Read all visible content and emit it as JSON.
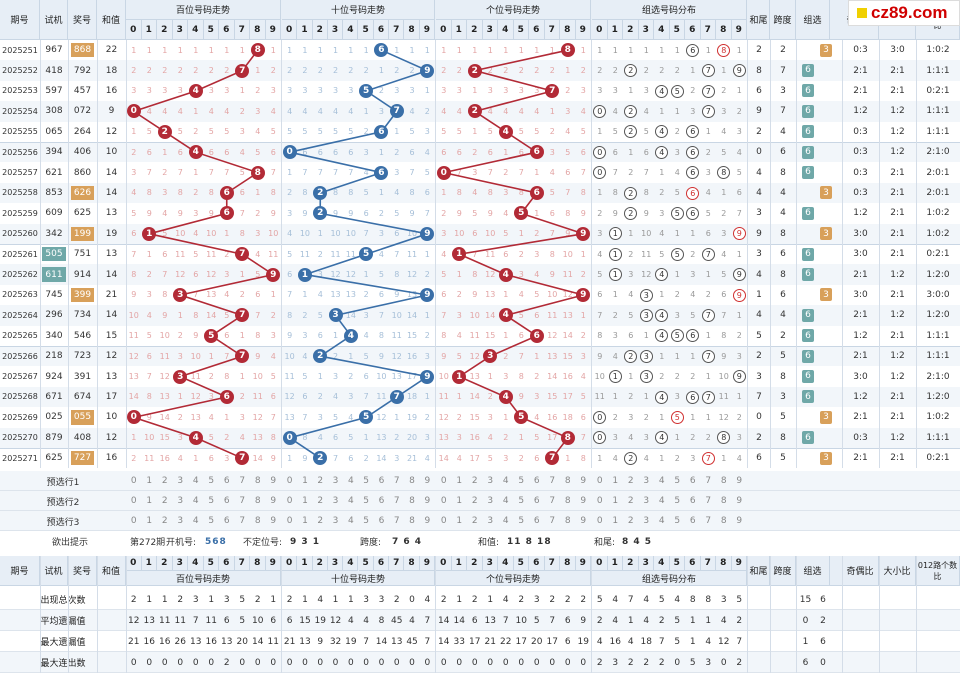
{
  "logo_text": "cz89.com",
  "headers": {
    "period": "期号",
    "trial": "试机",
    "prize": "奖号",
    "sum": "和值",
    "hundreds": "百位号码走势",
    "tens": "十位号码走势",
    "units": "个位号码走势",
    "group": "组选号码分布",
    "tail": "和尾",
    "span": "跨度",
    "zuxuan": "组选",
    "odd_even": "奇偶比",
    "big_small": "大小比",
    "mod012": "012路个数比",
    "digits": [
      "0",
      "1",
      "2",
      "3",
      "4",
      "5",
      "6",
      "7",
      "8",
      "9"
    ]
  },
  "rows": [
    {
      "period": "2025251",
      "trial": "967",
      "prize": "868",
      "prize_hl": "o",
      "sum": "22",
      "h": 8,
      "t": 6,
      "u": 8,
      "grp": [
        6,
        8
      ],
      "grp_red": [
        8
      ],
      "tail": "2",
      "span": "2",
      "zx": "3",
      "zx_c": "o",
      "oe": "0:3",
      "bs": "3:0",
      "m": "1:0:2"
    },
    {
      "period": "2025252",
      "trial": "418",
      "prize": "792",
      "prize_hl": "",
      "sum": "18",
      "h": 7,
      "t": 9,
      "u": 2,
      "grp": [
        2,
        7,
        9
      ],
      "grp_red": [],
      "tail": "8",
      "span": "7",
      "zx": "6",
      "zx_c": "t",
      "oe": "2:1",
      "bs": "2:1",
      "m": "1:1:1"
    },
    {
      "period": "2025253",
      "trial": "597",
      "prize": "457",
      "prize_hl": "",
      "sum": "16",
      "h": 4,
      "t": 5,
      "u": 7,
      "grp": [
        4,
        5,
        7
      ],
      "grp_red": [],
      "tail": "6",
      "span": "3",
      "zx": "6",
      "zx_c": "t",
      "oe": "2:1",
      "bs": "2:1",
      "m": "0:2:1"
    },
    {
      "period": "2025254",
      "trial": "308",
      "prize": "072",
      "prize_hl": "",
      "sum": "9",
      "h": 0,
      "t": 7,
      "u": 2,
      "grp": [
        0,
        2,
        7
      ],
      "grp_red": [],
      "tail": "9",
      "span": "7",
      "zx": "6",
      "zx_c": "t",
      "oe": "1:2",
      "bs": "1:2",
      "m": "1:1:1"
    },
    {
      "period": "2025255",
      "trial": "065",
      "prize": "264",
      "prize_hl": "",
      "sum": "12",
      "h": 2,
      "t": 6,
      "u": 4,
      "grp": [
        2,
        4,
        6
      ],
      "grp_red": [],
      "tail": "2",
      "span": "4",
      "zx": "6",
      "zx_c": "t",
      "oe": "0:3",
      "bs": "1:2",
      "m": "1:1:1"
    },
    {
      "period": "2025256",
      "trial": "394",
      "prize": "406",
      "prize_hl": "",
      "sum": "10",
      "h": 4,
      "t": 0,
      "u": 6,
      "grp": [
        0,
        4,
        6
      ],
      "grp_red": [],
      "tail": "0",
      "span": "6",
      "zx": "6",
      "zx_c": "t",
      "oe": "0:3",
      "bs": "1:2",
      "m": "2:1:0"
    },
    {
      "period": "2025257",
      "trial": "621",
      "prize": "860",
      "prize_hl": "",
      "sum": "14",
      "h": 8,
      "t": 6,
      "u": 0,
      "grp": [
        0,
        6,
        8
      ],
      "grp_red": [],
      "tail": "4",
      "span": "8",
      "zx": "6",
      "zx_c": "t",
      "oe": "0:3",
      "bs": "2:1",
      "m": "2:0:1"
    },
    {
      "period": "2025258",
      "trial": "853",
      "prize": "626",
      "prize_hl": "o",
      "sum": "14",
      "h": 6,
      "t": 2,
      "u": 6,
      "grp": [
        2,
        6
      ],
      "grp_red": [
        6
      ],
      "tail": "4",
      "span": "4",
      "zx": "3",
      "zx_c": "o",
      "oe": "0:3",
      "bs": "2:1",
      "m": "2:0:1"
    },
    {
      "period": "2025259",
      "trial": "609",
      "prize": "625",
      "prize_hl": "",
      "sum": "13",
      "h": 6,
      "t": 2,
      "u": 5,
      "grp": [
        2,
        5,
        6
      ],
      "grp_red": [],
      "tail": "3",
      "span": "4",
      "zx": "6",
      "zx_c": "t",
      "oe": "1:2",
      "bs": "2:1",
      "m": "1:0:2"
    },
    {
      "period": "2025260",
      "trial": "342",
      "prize": "199",
      "prize_hl": "o",
      "sum": "19",
      "h": 1,
      "t": 9,
      "u": 9,
      "grp": [
        1,
        9
      ],
      "grp_red": [
        9
      ],
      "tail": "9",
      "span": "8",
      "zx": "3",
      "zx_c": "o",
      "oe": "3:0",
      "bs": "2:1",
      "m": "1:0:2"
    },
    {
      "period": "2025261",
      "trial": "505",
      "trial_hl": "t",
      "prize": "751",
      "prize_hl": "",
      "sum": "13",
      "h": 7,
      "t": 5,
      "u": 1,
      "grp": [
        1,
        5,
        7
      ],
      "grp_red": [],
      "tail": "3",
      "span": "6",
      "zx": "6",
      "zx_c": "t",
      "oe": "3:0",
      "bs": "2:1",
      "m": "0:2:1"
    },
    {
      "period": "2025262",
      "trial": "611",
      "trial_hl": "t",
      "prize": "914",
      "prize_hl": "",
      "sum": "14",
      "h": 9,
      "t": 1,
      "u": 4,
      "grp": [
        1,
        4,
        9
      ],
      "grp_red": [],
      "tail": "4",
      "span": "8",
      "zx": "6",
      "zx_c": "t",
      "oe": "2:1",
      "bs": "1:2",
      "m": "1:2:0"
    },
    {
      "period": "2025263",
      "trial": "745",
      "prize": "399",
      "prize_hl": "o",
      "sum": "21",
      "h": 3,
      "t": 9,
      "u": 9,
      "grp": [
        3,
        9
      ],
      "grp_red": [
        9
      ],
      "tail": "1",
      "span": "6",
      "zx": "3",
      "zx_c": "o",
      "oe": "3:0",
      "bs": "2:1",
      "m": "3:0:0"
    },
    {
      "period": "2025264",
      "trial": "296",
      "prize": "734",
      "prize_hl": "",
      "sum": "14",
      "h": 7,
      "t": 3,
      "u": 4,
      "grp": [
        3,
        4,
        7
      ],
      "grp_red": [],
      "tail": "4",
      "span": "4",
      "zx": "6",
      "zx_c": "t",
      "oe": "2:1",
      "bs": "1:2",
      "m": "1:2:0"
    },
    {
      "period": "2025265",
      "trial": "340",
      "prize": "546",
      "prize_hl": "",
      "sum": "15",
      "h": 5,
      "t": 4,
      "u": 6,
      "grp": [
        4,
        5,
        6
      ],
      "grp_red": [],
      "tail": "5",
      "span": "2",
      "zx": "6",
      "zx_c": "t",
      "oe": "1:2",
      "bs": "2:1",
      "m": "1:1:1"
    },
    {
      "period": "2025266",
      "trial": "218",
      "prize": "723",
      "prize_hl": "",
      "sum": "12",
      "h": 7,
      "t": 2,
      "u": 3,
      "grp": [
        2,
        3,
        7
      ],
      "grp_red": [],
      "tail": "2",
      "span": "5",
      "zx": "6",
      "zx_c": "t",
      "oe": "2:1",
      "bs": "1:2",
      "m": "1:1:1"
    },
    {
      "period": "2025267",
      "trial": "924",
      "prize": "391",
      "prize_hl": "",
      "sum": "13",
      "h": 3,
      "t": 9,
      "u": 1,
      "grp": [
        1,
        3,
        9
      ],
      "grp_red": [],
      "tail": "3",
      "span": "8",
      "zx": "6",
      "zx_c": "t",
      "oe": "3:0",
      "bs": "1:2",
      "m": "2:1:0"
    },
    {
      "period": "2025268",
      "trial": "671",
      "prize": "674",
      "prize_hl": "",
      "sum": "17",
      "h": 6,
      "t": 7,
      "u": 4,
      "grp": [
        4,
        6,
        7
      ],
      "grp_red": [],
      "tail": "7",
      "span": "3",
      "zx": "6",
      "zx_c": "t",
      "oe": "1:2",
      "bs": "2:1",
      "m": "1:2:0"
    },
    {
      "period": "2025269",
      "trial": "025",
      "prize": "055",
      "prize_hl": "o",
      "sum": "10",
      "h": 0,
      "t": 5,
      "u": 5,
      "grp": [
        0,
        5
      ],
      "grp_red": [
        5
      ],
      "tail": "0",
      "span": "5",
      "zx": "3",
      "zx_c": "o",
      "oe": "2:1",
      "bs": "2:1",
      "m": "1:0:2"
    },
    {
      "period": "2025270",
      "trial": "879",
      "prize": "408",
      "prize_hl": "",
      "sum": "12",
      "h": 4,
      "t": 0,
      "u": 8,
      "grp": [
        0,
        4,
        8
      ],
      "grp_red": [],
      "tail": "2",
      "span": "8",
      "zx": "6",
      "zx_c": "t",
      "oe": "0:3",
      "bs": "1:2",
      "m": "1:1:1"
    },
    {
      "period": "2025271",
      "trial": "625",
      "prize": "727",
      "prize_hl": "o",
      "sum": "16",
      "h": 7,
      "t": 2,
      "u": 7,
      "grp": [
        2,
        7
      ],
      "grp_red": [
        7
      ],
      "tail": "6",
      "span": "5",
      "zx": "3",
      "zx_c": "o",
      "oe": "2:1",
      "bs": "2:1",
      "m": "0:2:1"
    }
  ],
  "preselect": [
    "预选行1",
    "预选行2",
    "预选行3"
  ],
  "hint": {
    "label": "欲出提示",
    "period": "第272期",
    "trial_label": "开机号:",
    "trial_val": "568",
    "pos_label": "不定位号:",
    "pos_val": "9 3 1",
    "span_label": "跨度:",
    "span_val": "7 6 4",
    "sum_label": "和值:",
    "sum_val": "11 8 18",
    "tail_label": "和尾:",
    "tail_val": "8 4 5"
  },
  "footer_rows": [
    {
      "label": "出现总次数",
      "h": [
        "2",
        "1",
        "1",
        "2",
        "3",
        "1",
        "3",
        "5",
        "2",
        "1"
      ],
      "t": [
        "2",
        "1",
        "4",
        "1",
        "1",
        "3",
        "3",
        "2",
        "0",
        "4"
      ],
      "u": [
        "2",
        "1",
        "2",
        "1",
        "4",
        "2",
        "3",
        "2",
        "2",
        "2"
      ],
      "g": [
        "5",
        "4",
        "7",
        "4",
        "5",
        "4",
        "8",
        "8",
        "3",
        "5"
      ],
      "z": [
        "15",
        "6"
      ]
    },
    {
      "label": "平均遗漏值",
      "h": [
        "12",
        "13",
        "11",
        "11",
        "7",
        "11",
        "6",
        "5",
        "10",
        "6"
      ],
      "t": [
        "6",
        "15",
        "19",
        "12",
        "4",
        "4",
        "8",
        "45",
        "4",
        "7"
      ],
      "u": [
        "14",
        "14",
        "6",
        "13",
        "7",
        "10",
        "5",
        "7",
        "6",
        "9"
      ],
      "g": [
        "2",
        "4",
        "1",
        "4",
        "2",
        "5",
        "1",
        "1",
        "4",
        "2"
      ],
      "z": [
        "0",
        "2"
      ]
    },
    {
      "label": "最大遗漏值",
      "h": [
        "21",
        "16",
        "16",
        "26",
        "13",
        "16",
        "13",
        "20",
        "14",
        "11"
      ],
      "t": [
        "21",
        "13",
        "9",
        "32",
        "19",
        "7",
        "14",
        "13",
        "45",
        "7"
      ],
      "u": [
        "14",
        "33",
        "17",
        "21",
        "22",
        "17",
        "20",
        "17",
        "6",
        "19"
      ],
      "g": [
        "4",
        "16",
        "4",
        "18",
        "7",
        "5",
        "1",
        "4",
        "12",
        "7"
      ],
      "z": [
        "1",
        "6"
      ]
    },
    {
      "label": "最大连出数",
      "h": [
        "0",
        "0",
        "0",
        "0",
        "0",
        "0",
        "2",
        "0",
        "0",
        "0"
      ],
      "t": [
        "0",
        "0",
        "0",
        "0",
        "0",
        "0",
        "0",
        "0",
        "0",
        "0"
      ],
      "u": [
        "0",
        "0",
        "0",
        "0",
        "0",
        "0",
        "0",
        "0",
        "0",
        "0"
      ],
      "g": [
        "2",
        "3",
        "2",
        "2",
        "2",
        "0",
        "5",
        "3",
        "0",
        "2"
      ],
      "z": [
        "6",
        "0"
      ]
    }
  ],
  "footer_hdr": {
    "period": "期号",
    "trial": "试机",
    "prize": "奖号",
    "sum": "和值",
    "tail": "和尾",
    "span": "跨度",
    "zuxuan": "组选",
    "oe": "奇偶比",
    "bs": "大小比",
    "mod": "012路个数比"
  },
  "colors": {
    "red": "#b22a36",
    "blue": "#3a6fa8",
    "teal": "#6fa8a8",
    "orange": "#d8a05a",
    "header_bg": "#e7eef6"
  }
}
